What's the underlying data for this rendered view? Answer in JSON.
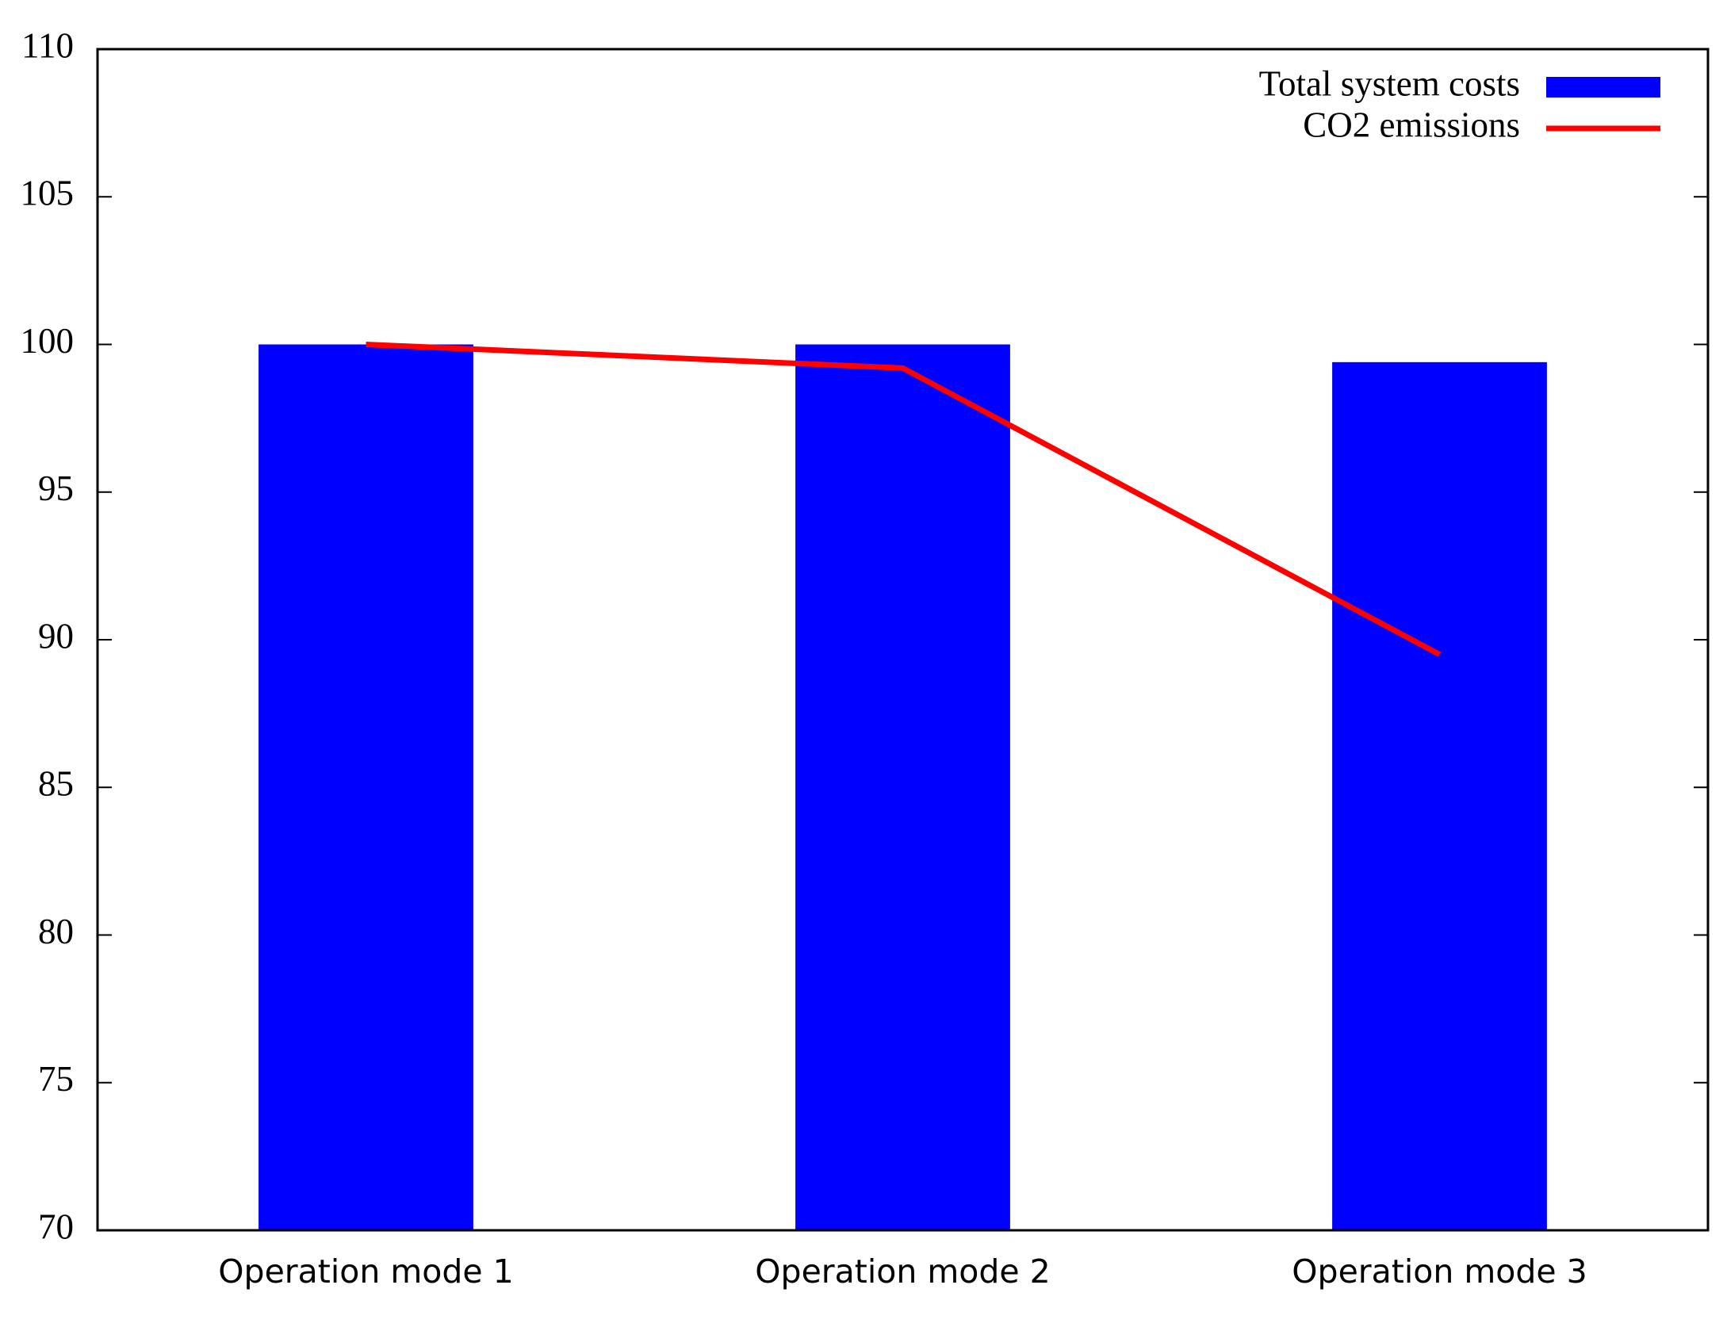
{
  "chart_data": {
    "type": "bar",
    "categories": [
      "Operation mode 1",
      "Operation mode 2",
      "Operation mode 3"
    ],
    "series": [
      {
        "name": "Total system costs",
        "type": "bar",
        "color": "#0000ff",
        "values": [
          100,
          100,
          99.4
        ]
      },
      {
        "name": "CO2 emissions",
        "type": "line",
        "color": "#ff0000",
        "values": [
          100,
          99.2,
          89.5
        ]
      }
    ],
    "ylim": [
      70,
      110
    ],
    "yticks": [
      70,
      75,
      80,
      85,
      90,
      95,
      100,
      105,
      110
    ],
    "grid": false,
    "legend": "top-right"
  }
}
